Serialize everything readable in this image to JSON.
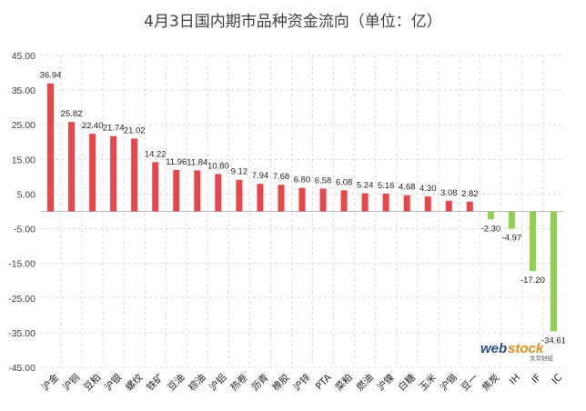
{
  "chart_data": {
    "type": "bar",
    "title": "4月3日国内期市品种资金流向（单位：亿）",
    "categories": [
      "沪金",
      "沪铜",
      "豆粕",
      "沪银",
      "螺纹",
      "铁矿",
      "豆油",
      "棕油",
      "沪铝",
      "热卷",
      "沥青",
      "橡胶",
      "沪锌",
      "PTA",
      "菜粕",
      "燃油",
      "沪镍",
      "白糖",
      "玉米",
      "沪锡",
      "豆一",
      "焦炭",
      "IH",
      "IF",
      "IC"
    ],
    "values": [
      36.94,
      25.82,
      22.4,
      21.74,
      21.02,
      14.22,
      11.96,
      11.84,
      10.8,
      9.12,
      7.94,
      7.68,
      6.8,
      6.58,
      6.08,
      5.24,
      5.16,
      4.68,
      4.3,
      3.08,
      2.82,
      -2.3,
      -4.97,
      -17.2,
      -34.61
    ],
    "value_labels": [
      "36.94",
      "25.82",
      "22.40",
      "21.74",
      "21.02",
      "14.22",
      "11.96",
      "11.84",
      "10.80",
      "9.12",
      "7.94",
      "7.68",
      "6.80",
      "6.58",
      "6.08",
      "5.24",
      "5.16",
      "4.68",
      "4.30",
      "3.08",
      "2.82",
      "-2.30",
      "-4.97",
      "-17.20",
      "-34.61"
    ],
    "y_ticks": [
      "45.00",
      "35.00",
      "25.00",
      "15.00",
      "5.00",
      "-5.00",
      "-15.00",
      "-25.00",
      "-35.00",
      "-45.00"
    ],
    "ylim": [
      -45,
      45
    ],
    "grid": true,
    "colors": {
      "positive": "#e8464a",
      "negative": "#92d050"
    }
  },
  "watermark": {
    "brand_left": "web",
    "brand_right": "stock",
    "sub": "文华财经"
  }
}
